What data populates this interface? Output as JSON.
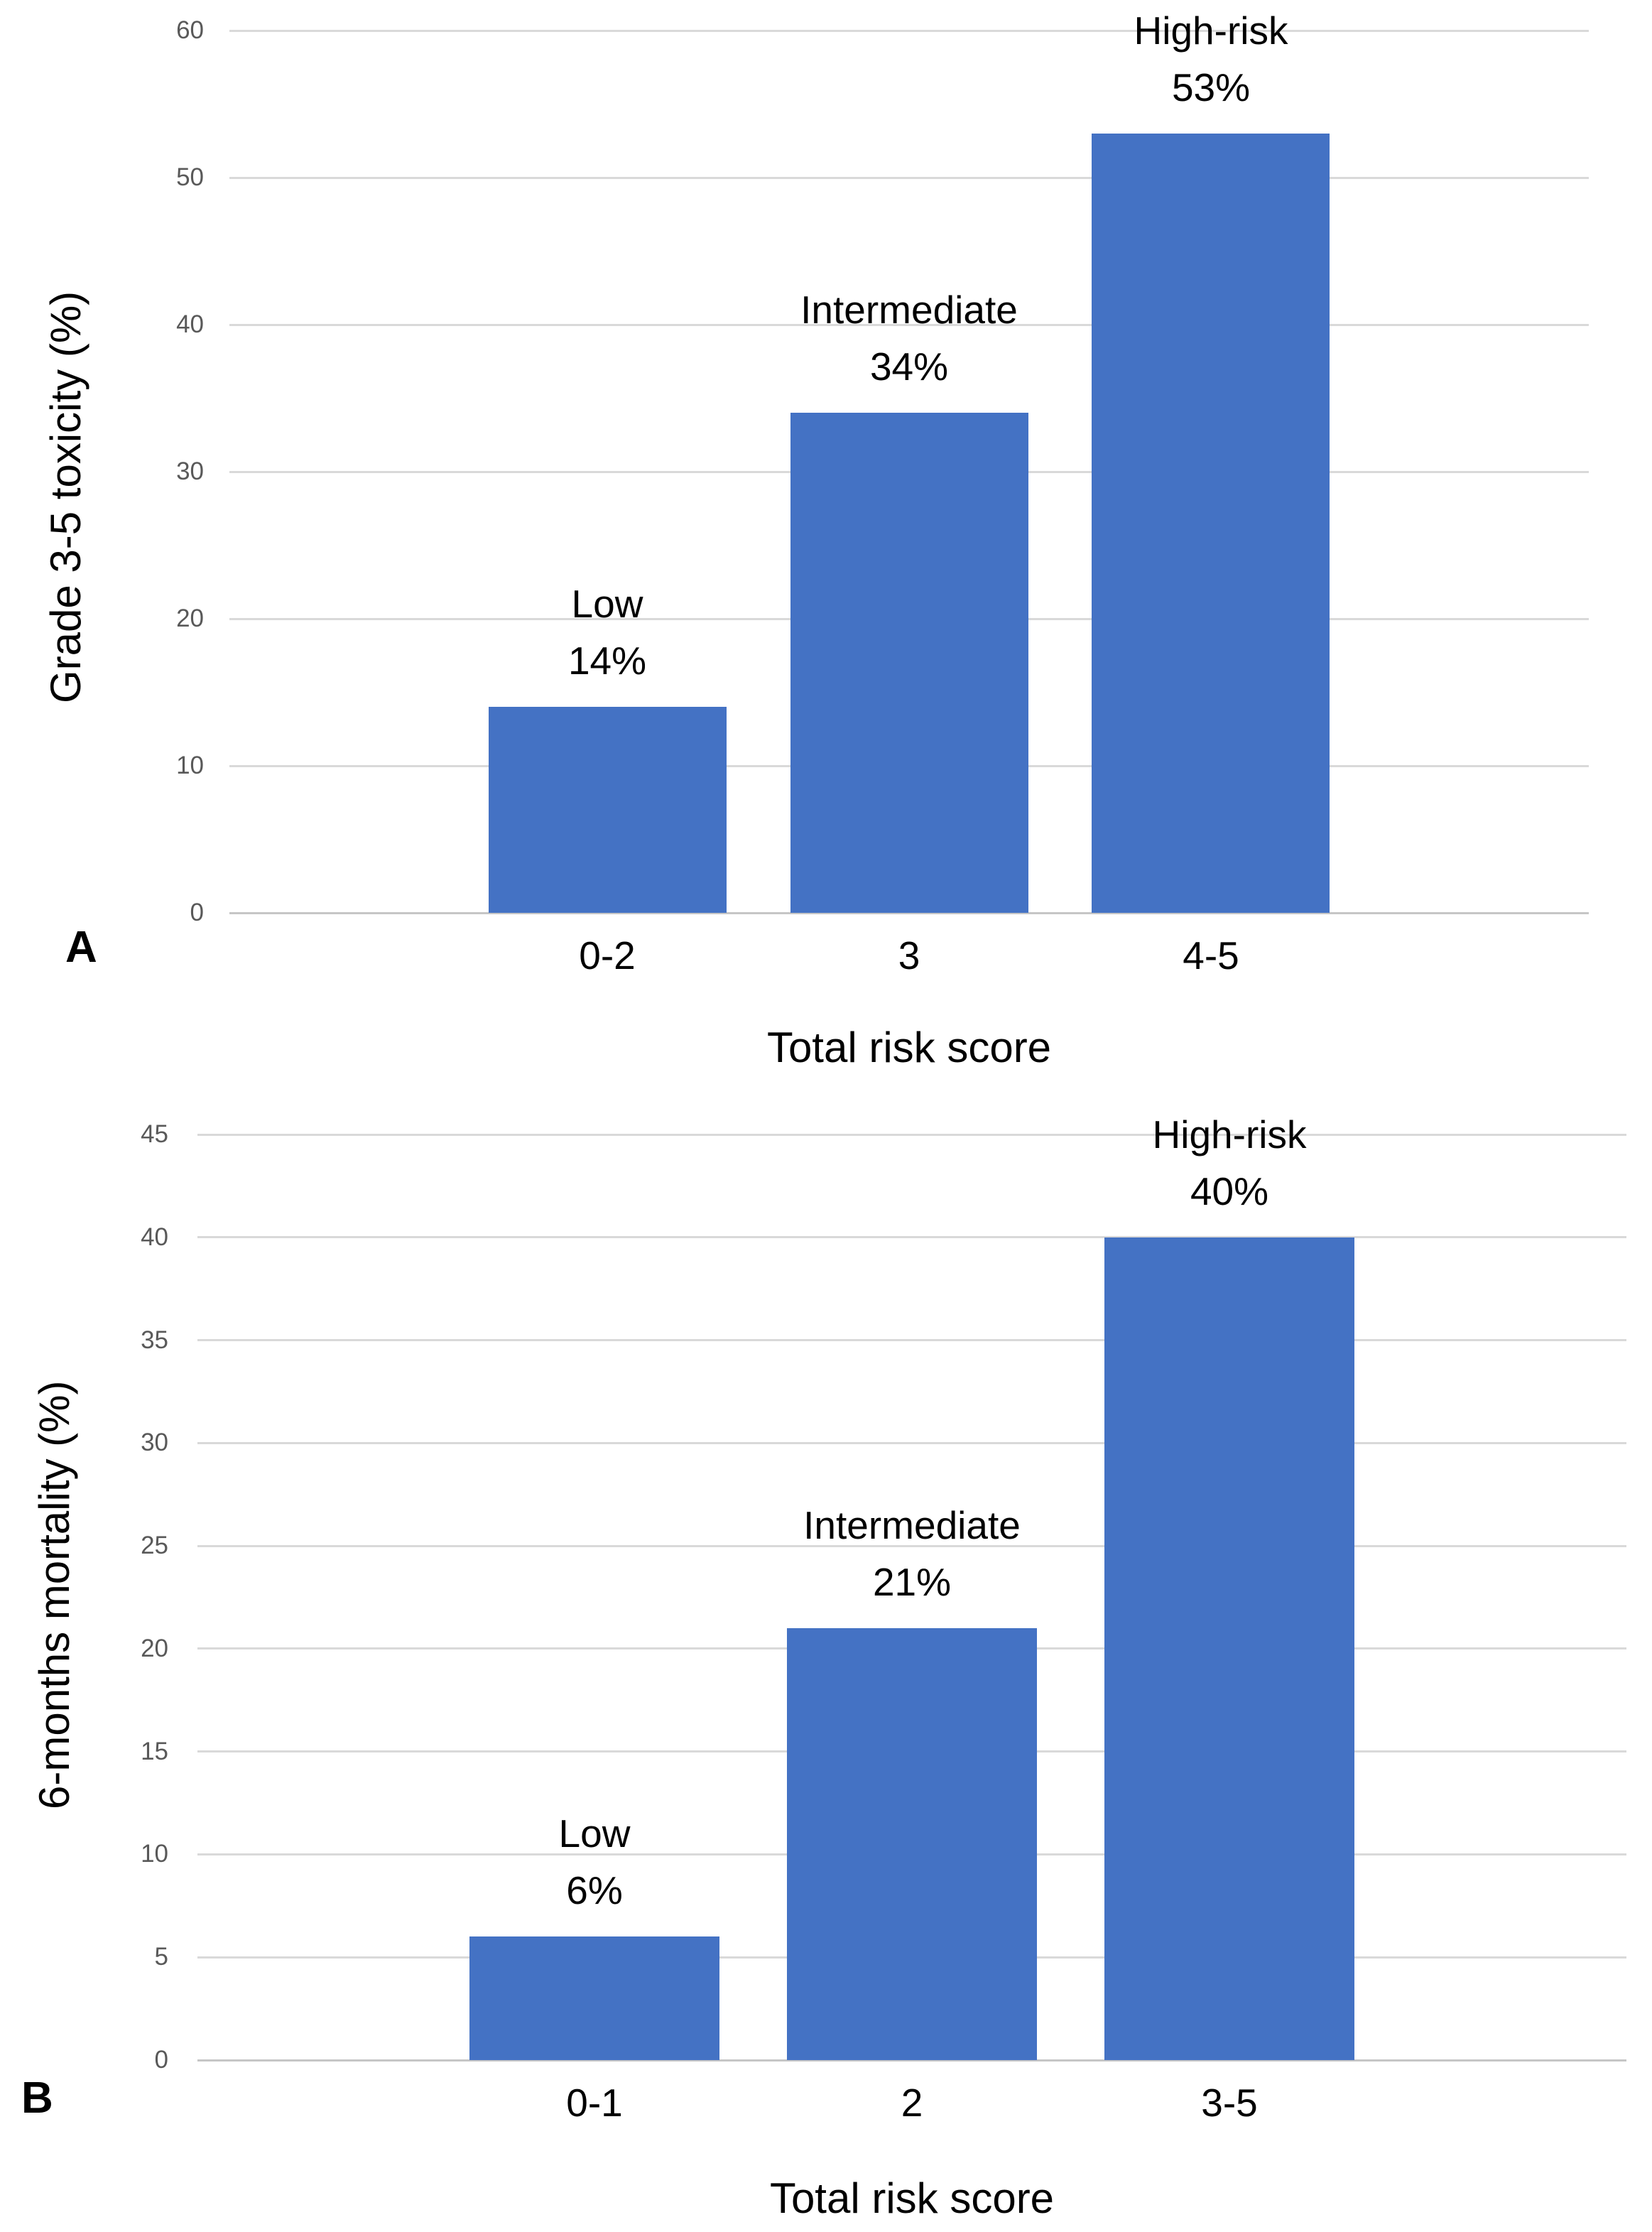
{
  "figure": {
    "background": "#FFFFFF",
    "panels": [
      "A",
      "B"
    ]
  },
  "colors": {
    "bar": "#4472C4",
    "gridline": "#D9D9D9",
    "axis_line": "#C6C6C6",
    "tick_label": "#595959",
    "text": "#000000"
  },
  "chart_data": [
    {
      "type": "bar",
      "panel": "A",
      "title": "",
      "xlabel": "Total risk score",
      "ylabel": "Grade 3-5 toxicity (%)",
      "categories": [
        "0-2",
        "3",
        "4-5"
      ],
      "values": [
        14,
        34,
        53
      ],
      "bar_labels": [
        {
          "group": "Low",
          "value_text": "14%"
        },
        {
          "group": "Intermediate",
          "value_text": "34%"
        },
        {
          "group": "High-risk",
          "value_text": "53%"
        }
      ],
      "ylim": [
        0,
        60
      ],
      "ytick_step": 10,
      "yticks": [
        0,
        10,
        20,
        30,
        40,
        50,
        60
      ],
      "grid": true,
      "legend": "none",
      "bar_color": "#4472C4"
    },
    {
      "type": "bar",
      "panel": "B",
      "title": "",
      "xlabel": "Total risk score",
      "ylabel": "6-months mortality (%)",
      "categories": [
        "0-1",
        "2",
        "3-5"
      ],
      "values": [
        6,
        21,
        40
      ],
      "bar_labels": [
        {
          "group": "Low",
          "value_text": "6%"
        },
        {
          "group": "Intermediate",
          "value_text": "21%"
        },
        {
          "group": "High-risk",
          "value_text": "40%"
        }
      ],
      "ylim": [
        0,
        45
      ],
      "ytick_step": 5,
      "yticks": [
        0,
        5,
        10,
        15,
        20,
        25,
        30,
        35,
        40,
        45
      ],
      "grid": true,
      "legend": "none",
      "bar_color": "#4472C4"
    }
  ]
}
